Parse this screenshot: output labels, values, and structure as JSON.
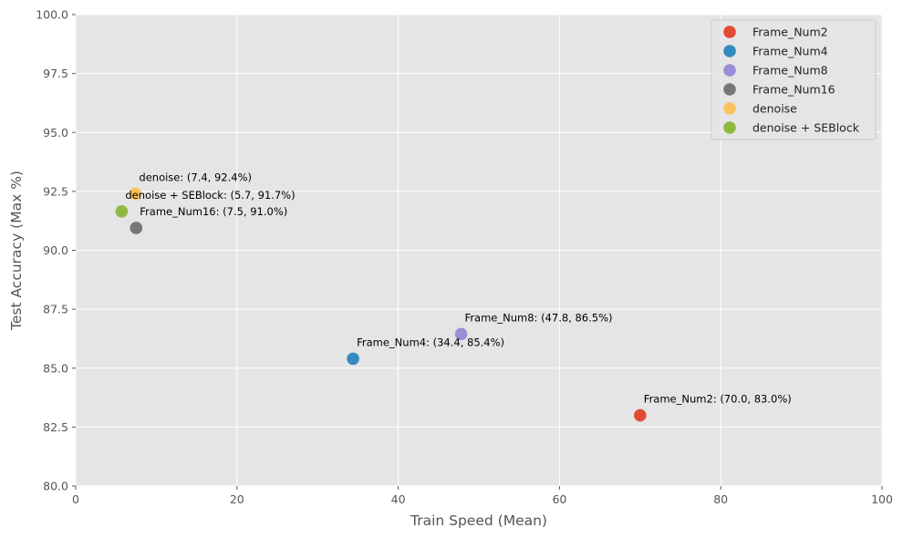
{
  "chart_data": {
    "type": "scatter",
    "title": "",
    "xlabel": "Train Speed (Mean)",
    "ylabel": "Test Accuracy (Max %)",
    "xlim": [
      0,
      100
    ],
    "ylim": [
      80,
      100
    ],
    "xticks": [
      0,
      20,
      40,
      60,
      80,
      100
    ],
    "yticks": [
      80.0,
      82.5,
      85.0,
      87.5,
      90.0,
      92.5,
      95.0,
      97.5,
      100.0
    ],
    "xtick_labels": [
      "0",
      "20",
      "40",
      "60",
      "80",
      "100"
    ],
    "ytick_labels": [
      "80.0",
      "82.5",
      "85.0",
      "87.5",
      "90.0",
      "92.5",
      "95.0",
      "97.5",
      "100.0"
    ],
    "grid": true,
    "legend_position": "top-right",
    "series": [
      {
        "name": "Frame_Num2",
        "color": "#E24A33",
        "x": 70.0,
        "y": 83.0,
        "annotation": "Frame_Num2: (70.0, 83.0%)"
      },
      {
        "name": "Frame_Num4",
        "color": "#348ABD",
        "x": 34.4,
        "y": 85.4,
        "annotation": "Frame_Num4: (34.4, 85.4%)"
      },
      {
        "name": "Frame_Num8",
        "color": "#988ED5",
        "x": 47.8,
        "y": 86.45,
        "annotation": "Frame_Num8: (47.8, 86.5%)"
      },
      {
        "name": "Frame_Num16",
        "color": "#777777",
        "x": 7.5,
        "y": 90.95,
        "annotation": "Frame_Num16: (7.5, 91.0%)"
      },
      {
        "name": "denoise",
        "color": "#FBC15E",
        "x": 7.4,
        "y": 92.4,
        "annotation": "denoise: (7.4, 92.4%)"
      },
      {
        "name": "denoise + SEBlock",
        "color": "#8EBA42",
        "x": 5.7,
        "y": 91.65,
        "annotation": "denoise + SEBlock: (5.7, 91.7%)"
      }
    ]
  }
}
